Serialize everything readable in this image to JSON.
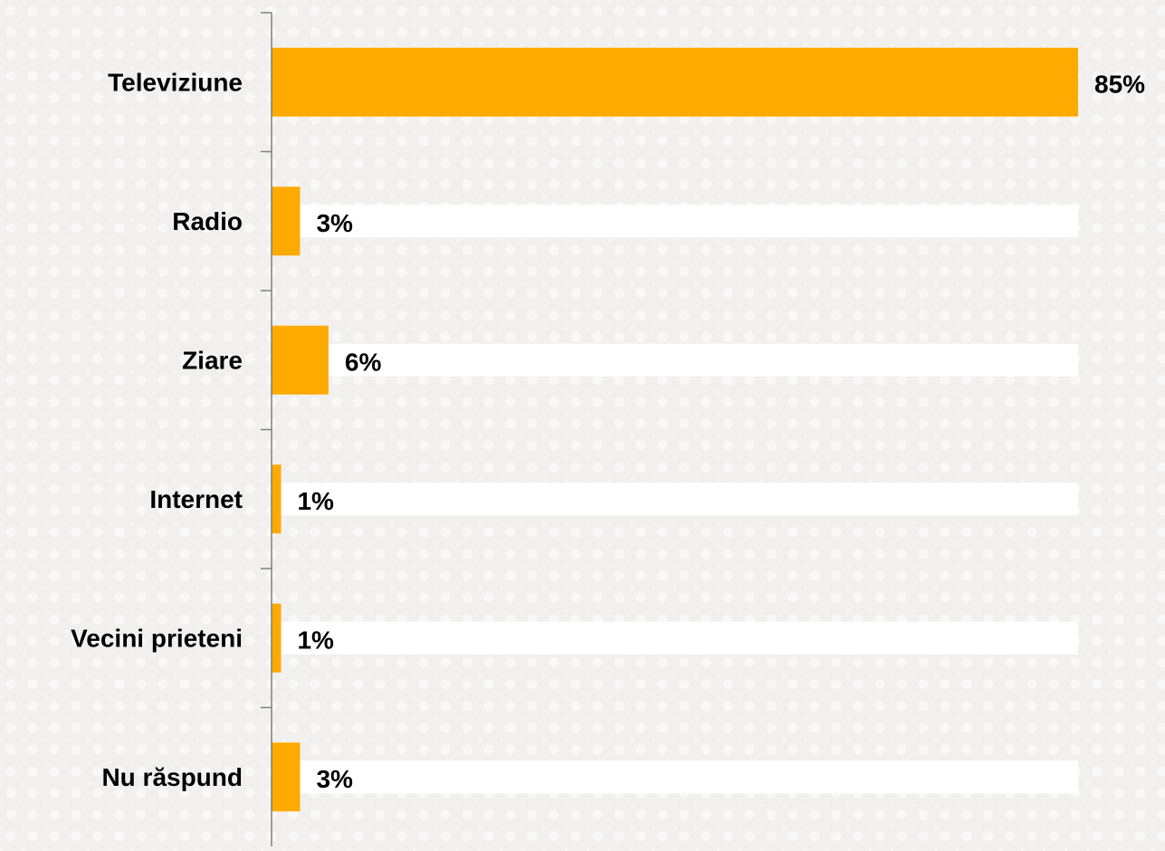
{
  "chart_data": {
    "type": "bar",
    "orientation": "horizontal",
    "categories": [
      "Televiziune",
      "Radio",
      "Ziare",
      "Internet",
      "Vecini prieteni",
      "Nu răspund"
    ],
    "values": [
      85,
      3,
      6,
      1,
      1,
      3
    ],
    "value_labels": [
      "85%",
      "3%",
      "6%",
      "1%",
      "1%",
      "3%"
    ],
    "unit": "%",
    "xlim": [
      0,
      85
    ],
    "grid": false,
    "legend": "none",
    "colors": {
      "bar": "#FFAA00",
      "track": "#FFFFFF",
      "axis": "#7F7F7F",
      "text": "#000000"
    }
  }
}
